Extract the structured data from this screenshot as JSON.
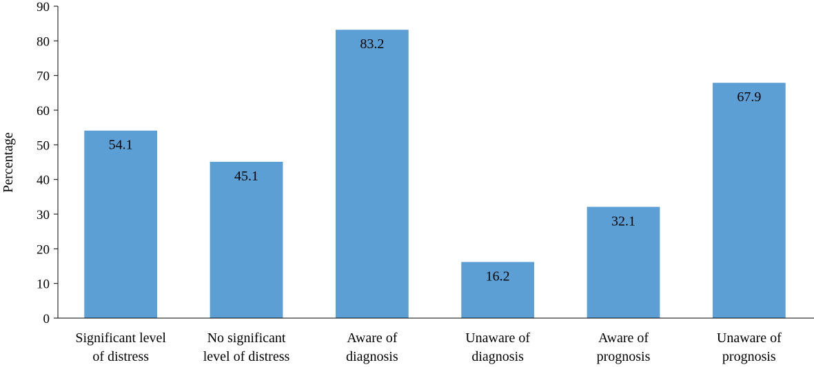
{
  "chart_data": {
    "type": "bar",
    "categories": [
      [
        "Significant level",
        "of distress"
      ],
      [
        "No significant",
        "level of distress"
      ],
      [
        "Aware of",
        "diagnosis"
      ],
      [
        "Unaware of",
        "diagnosis"
      ],
      [
        "Aware of",
        "prognosis"
      ],
      [
        "Unaware of",
        "prognosis"
      ]
    ],
    "values": [
      54.1,
      45.1,
      83.2,
      16.2,
      32.1,
      67.9
    ],
    "data_labels": [
      "54.1",
      "45.1",
      "83.2",
      "16.2",
      "32.1",
      "67.9"
    ],
    "ylabel": "Percentage",
    "xlabel": "",
    "ylim": [
      0,
      90
    ],
    "yticks": [
      0,
      10,
      20,
      30,
      40,
      50,
      60,
      70,
      80,
      90
    ],
    "bar_color": "#5b9fd4",
    "grid": false,
    "legend": "none"
  }
}
